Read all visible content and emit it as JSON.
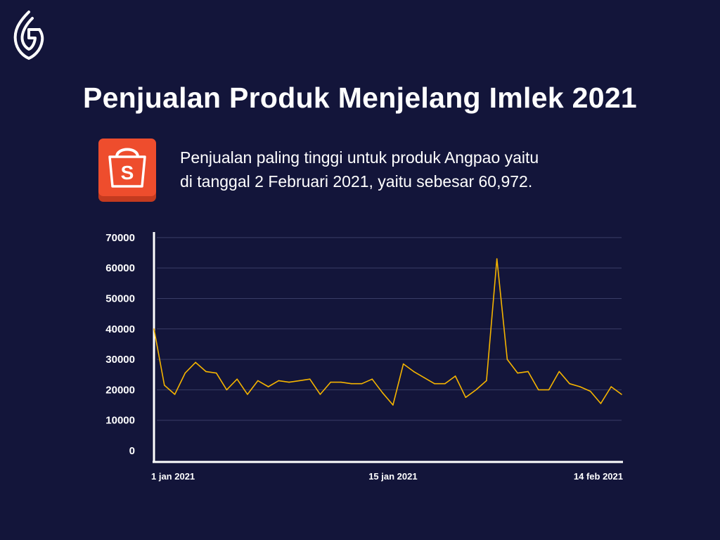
{
  "title": "Penjualan Produk Menjelang Imlek 2021",
  "description_line1": "Penjualan paling tinggi untuk produk Angpao yaitu",
  "description_line2": "di tanggal 2 Februari 2021, yaitu sebesar 60,972.",
  "logo": {
    "icon": "leaf-g-logo-icon"
  },
  "shop_icon": {
    "icon": "shopping-bag-icon",
    "letter": "S",
    "color": "#ee4d2d"
  },
  "chart_data": {
    "type": "line",
    "title": "",
    "xlabel": "",
    "ylabel": "",
    "ylim": [
      0,
      70000
    ],
    "yticks": [
      0,
      10000,
      20000,
      30000,
      40000,
      50000,
      60000,
      70000
    ],
    "yticklabels": [
      "0",
      "10000",
      "20000",
      "30000",
      "40000",
      "50000",
      "60000",
      "70000"
    ],
    "x_tick_labels": [
      {
        "index": 0,
        "label": "1 jan 2021"
      },
      {
        "index": 23,
        "label": "15 jan 2021"
      },
      {
        "index": 44,
        "label": "14 feb 2021"
      }
    ],
    "grid": true,
    "line_color": "#f5b400",
    "series": [
      {
        "values": [
          40000,
          21500,
          18500,
          25500,
          29000,
          26000,
          25500,
          20000,
          23500,
          18500,
          23000,
          21000,
          23000,
          22500,
          23000,
          23500,
          18500,
          22500,
          22500,
          22000,
          22000,
          23500,
          19000,
          15000,
          28500,
          26000,
          24000,
          22000,
          22000,
          24500,
          17500,
          20000,
          23000,
          63000,
          30000,
          25500,
          26000,
          20000,
          20000,
          26000,
          22000,
          21000,
          19500,
          15500,
          21000,
          18500
        ]
      }
    ]
  }
}
